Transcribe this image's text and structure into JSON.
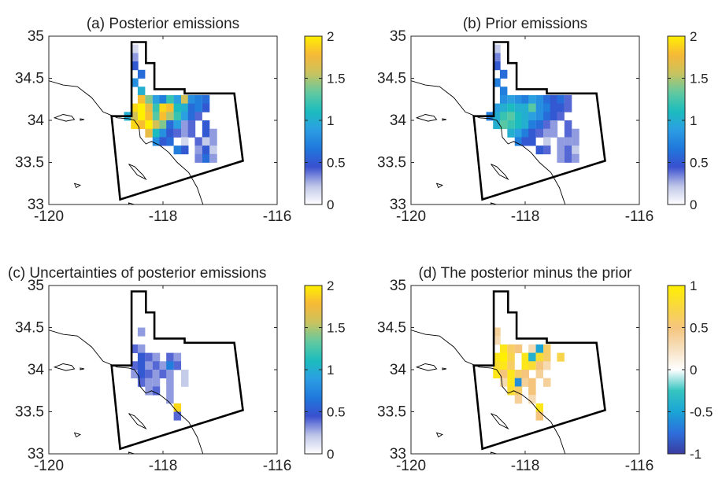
{
  "figure": {
    "colormaps": {
      "emissions": [
        "#ffffff",
        "#bfc6e8",
        "#3a4fcf",
        "#1f78dc",
        "#2c9ee3",
        "#1bbdbd",
        "#63c9a0",
        "#c8c35f",
        "#f7b838",
        "#fff000"
      ],
      "difference": [
        "#3a3ca0",
        "#2d6fdc",
        "#1aa5d6",
        "#36c4c0",
        "#ffffff",
        "#f6e0bf",
        "#f5c57e",
        "#f9d840",
        "#fff000"
      ]
    },
    "boundary_color": "#000000"
  },
  "chart_data": [
    {
      "id": "a",
      "type": "heatmap",
      "title": "(a) Posterior emissions",
      "xlim": [
        -120,
        -116
      ],
      "ylim": [
        33,
        35
      ],
      "xticks": [
        -120,
        -118,
        -116
      ],
      "xticklabels": [
        "-120",
        "-118",
        "-116"
      ],
      "yticks": [
        33,
        33.5,
        34,
        34.5,
        35
      ],
      "yticklabels": [
        "33",
        "33.5",
        "34",
        "34.5",
        "35"
      ],
      "colorbar": {
        "range": [
          0,
          2
        ],
        "ticks": [
          0,
          0.5,
          1,
          1.5,
          2
        ],
        "ticklabels": [
          "0",
          "0.5",
          "1",
          "1.5",
          "2"
        ],
        "cmap": "emissions"
      },
      "grid": "off",
      "cell_size_deg": [
        0.125,
        0.1
      ],
      "cells": [
        [
          -118.5,
          34.85,
          0.15
        ],
        [
          -118.5,
          34.75,
          0.3
        ],
        [
          -118.5,
          34.65,
          0.5
        ],
        [
          -118.38,
          34.55,
          0.6
        ],
        [
          -118.5,
          34.45,
          0.8
        ],
        [
          -118.38,
          34.35,
          1.0
        ],
        [
          -118.38,
          34.25,
          1.8
        ],
        [
          -118.25,
          34.25,
          1.4
        ],
        [
          -118.12,
          34.25,
          0.9
        ],
        [
          -118.0,
          34.25,
          0.7
        ],
        [
          -117.88,
          34.25,
          1.2
        ],
        [
          -117.75,
          34.25,
          0.9
        ],
        [
          -117.62,
          34.25,
          1.6
        ],
        [
          -117.5,
          34.25,
          0.8
        ],
        [
          -117.38,
          34.25,
          0.7
        ],
        [
          -117.25,
          34.25,
          0.6
        ],
        [
          -118.5,
          34.15,
          1.9
        ],
        [
          -118.38,
          34.15,
          2.0
        ],
        [
          -118.25,
          34.15,
          1.7
        ],
        [
          -118.12,
          34.15,
          1.2
        ],
        [
          -118.0,
          34.15,
          1.9
        ],
        [
          -117.88,
          34.15,
          1.8
        ],
        [
          -117.75,
          34.15,
          1.1
        ],
        [
          -117.62,
          34.15,
          1.0
        ],
        [
          -117.5,
          34.15,
          0.6
        ],
        [
          -117.38,
          34.15,
          0.7
        ],
        [
          -117.25,
          34.15,
          0.5
        ],
        [
          -118.62,
          34.05,
          1.0
        ],
        [
          -118.5,
          34.05,
          1.6
        ],
        [
          -118.38,
          34.05,
          2.0
        ],
        [
          -118.25,
          34.05,
          1.8
        ],
        [
          -118.12,
          34.05,
          1.3
        ],
        [
          -118.0,
          34.05,
          1.8
        ],
        [
          -117.88,
          34.05,
          1.5
        ],
        [
          -117.75,
          34.05,
          1.2
        ],
        [
          -117.62,
          34.05,
          0.9
        ],
        [
          -117.5,
          34.05,
          0.6
        ],
        [
          -117.38,
          34.05,
          0.4
        ],
        [
          -118.5,
          33.95,
          1.9
        ],
        [
          -118.38,
          33.95,
          1.8
        ],
        [
          -118.25,
          33.95,
          2.0
        ],
        [
          -118.12,
          33.95,
          1.6
        ],
        [
          -118.0,
          33.95,
          1.4
        ],
        [
          -117.88,
          33.95,
          0.6
        ],
        [
          -117.75,
          33.95,
          0.9
        ],
        [
          -117.62,
          33.95,
          0.3
        ],
        [
          -117.5,
          33.95,
          0.4
        ],
        [
          -117.25,
          33.95,
          0.5
        ],
        [
          -118.25,
          33.85,
          1.7
        ],
        [
          -118.12,
          33.85,
          1.1
        ],
        [
          -118.0,
          33.85,
          0.8
        ],
        [
          -117.88,
          33.85,
          0.5
        ],
        [
          -117.75,
          33.85,
          0.4
        ],
        [
          -117.62,
          33.85,
          0.3
        ],
        [
          -117.5,
          33.85,
          0.4
        ],
        [
          -117.25,
          33.85,
          0.5
        ],
        [
          -117.12,
          33.85,
          0.3
        ],
        [
          -118.12,
          33.75,
          0.8
        ],
        [
          -118.0,
          33.75,
          0.5
        ],
        [
          -117.88,
          33.75,
          0.6
        ],
        [
          -117.62,
          33.75,
          0.15
        ],
        [
          -117.38,
          33.75,
          0.4
        ],
        [
          -117.25,
          33.75,
          0.2
        ],
        [
          -117.12,
          33.75,
          0.3
        ],
        [
          -117.75,
          33.65,
          0.7
        ],
        [
          -117.62,
          33.65,
          0.5
        ],
        [
          -117.38,
          33.65,
          0.3
        ],
        [
          -117.25,
          33.65,
          0.5
        ],
        [
          -117.12,
          33.65,
          0.2
        ],
        [
          -117.38,
          33.55,
          0.35
        ],
        [
          -117.25,
          33.55,
          0.6
        ],
        [
          -117.12,
          33.55,
          0.3
        ]
      ]
    },
    {
      "id": "b",
      "type": "heatmap",
      "title": "(b) Prior emissions",
      "xlim": [
        -120,
        -116
      ],
      "ylim": [
        33,
        35
      ],
      "xticks": [
        -120,
        -118,
        -116
      ],
      "xticklabels": [
        "-120",
        "-118",
        "-116"
      ],
      "yticks": [
        33,
        33.5,
        34,
        34.5,
        35
      ],
      "yticklabels": [
        "33",
        "33.5",
        "34",
        "34.5",
        "35"
      ],
      "colorbar": {
        "range": [
          0,
          2
        ],
        "ticks": [
          0,
          0.5,
          1,
          1.5,
          2
        ],
        "ticklabels": [
          "0",
          "0.5",
          "1",
          "1.5",
          "2"
        ],
        "cmap": "emissions"
      },
      "grid": "off",
      "cell_size_deg": [
        0.125,
        0.1
      ],
      "cells": [
        [
          -118.5,
          34.85,
          0.2
        ],
        [
          -118.5,
          34.75,
          0.35
        ],
        [
          -118.5,
          34.65,
          0.5
        ],
        [
          -118.38,
          34.55,
          0.6
        ],
        [
          -118.5,
          34.45,
          0.7
        ],
        [
          -118.38,
          34.35,
          0.7
        ],
        [
          -118.38,
          34.25,
          0.8
        ],
        [
          -118.25,
          34.25,
          0.9
        ],
        [
          -118.12,
          34.25,
          0.8
        ],
        [
          -118.0,
          34.25,
          0.7
        ],
        [
          -117.88,
          34.25,
          0.9
        ],
        [
          -117.75,
          34.25,
          0.8
        ],
        [
          -117.62,
          34.25,
          0.6
        ],
        [
          -117.5,
          34.25,
          0.5
        ],
        [
          -117.38,
          34.25,
          0.6
        ],
        [
          -117.25,
          34.25,
          0.4
        ],
        [
          -118.5,
          34.15,
          0.9
        ],
        [
          -118.38,
          34.15,
          1.0
        ],
        [
          -118.25,
          34.15,
          1.1
        ],
        [
          -118.12,
          34.15,
          1.0
        ],
        [
          -118.0,
          34.15,
          1.0
        ],
        [
          -117.88,
          34.15,
          1.3
        ],
        [
          -117.75,
          34.15,
          0.8
        ],
        [
          -117.62,
          34.15,
          0.7
        ],
        [
          -117.5,
          34.15,
          0.5
        ],
        [
          -117.38,
          34.15,
          0.5
        ],
        [
          -117.25,
          34.15,
          0.4
        ],
        [
          -118.62,
          34.05,
          0.7
        ],
        [
          -118.5,
          34.05,
          1.0
        ],
        [
          -118.38,
          34.05,
          1.2
        ],
        [
          -118.25,
          34.05,
          1.3
        ],
        [
          -118.12,
          34.05,
          1.1
        ],
        [
          -118.0,
          34.05,
          1.0
        ],
        [
          -117.88,
          34.05,
          0.9
        ],
        [
          -117.75,
          34.05,
          0.8
        ],
        [
          -117.62,
          34.05,
          0.6
        ],
        [
          -117.5,
          34.05,
          0.5
        ],
        [
          -117.38,
          34.05,
          0.4
        ],
        [
          -118.5,
          33.95,
          1.0
        ],
        [
          -118.38,
          33.95,
          1.3
        ],
        [
          -118.25,
          33.95,
          1.2
        ],
        [
          -118.12,
          33.95,
          1.1
        ],
        [
          -118.0,
          33.95,
          1.0
        ],
        [
          -117.88,
          33.95,
          0.7
        ],
        [
          -117.75,
          33.95,
          0.6
        ],
        [
          -117.62,
          33.95,
          0.4
        ],
        [
          -117.5,
          33.95,
          0.3
        ],
        [
          -117.25,
          33.95,
          0.4
        ],
        [
          -118.25,
          33.85,
          1.0
        ],
        [
          -118.12,
          33.85,
          0.9
        ],
        [
          -118.0,
          33.85,
          0.7
        ],
        [
          -117.88,
          33.85,
          0.5
        ],
        [
          -117.75,
          33.85,
          0.4
        ],
        [
          -117.62,
          33.85,
          0.3
        ],
        [
          -117.5,
          33.85,
          0.3
        ],
        [
          -117.25,
          33.85,
          0.4
        ],
        [
          -117.12,
          33.85,
          0.3
        ],
        [
          -118.12,
          33.75,
          0.7
        ],
        [
          -118.0,
          33.75,
          0.5
        ],
        [
          -117.88,
          33.75,
          0.5
        ],
        [
          -117.62,
          33.75,
          0.2
        ],
        [
          -117.38,
          33.75,
          0.3
        ],
        [
          -117.25,
          33.75,
          0.3
        ],
        [
          -117.12,
          33.75,
          0.3
        ],
        [
          -117.75,
          33.65,
          0.5
        ],
        [
          -117.62,
          33.65,
          0.4
        ],
        [
          -117.38,
          33.65,
          0.3
        ],
        [
          -117.25,
          33.65,
          0.4
        ],
        [
          -117.12,
          33.65,
          0.2
        ],
        [
          -117.38,
          33.55,
          0.3
        ],
        [
          -117.25,
          33.55,
          0.4
        ],
        [
          -117.12,
          33.55,
          0.3
        ]
      ]
    },
    {
      "id": "c",
      "type": "heatmap",
      "title": "(c) Uncertainties of posterior emissions",
      "xlim": [
        -120,
        -116
      ],
      "ylim": [
        33,
        35
      ],
      "xticks": [
        -120,
        -118,
        -116
      ],
      "xticklabels": [
        "-120",
        "-118",
        "-116"
      ],
      "yticks": [
        33,
        33.5,
        34,
        34.5,
        35
      ],
      "yticklabels": [
        "33",
        "33.5",
        "34",
        "34.5",
        "35"
      ],
      "colorbar": {
        "range": [
          0,
          2
        ],
        "ticks": [
          0,
          0.5,
          1,
          1.5,
          2
        ],
        "ticklabels": [
          "0",
          "0.5",
          "1",
          "1.5",
          "2"
        ],
        "cmap": "emissions"
      },
      "grid": "off",
      "cell_size_deg": [
        0.125,
        0.1
      ],
      "cells": [
        [
          -118.38,
          34.45,
          0.3
        ],
        [
          -118.5,
          34.25,
          0.4
        ],
        [
          -118.38,
          34.25,
          0.3
        ],
        [
          -118.38,
          34.15,
          0.5
        ],
        [
          -118.25,
          34.15,
          0.4
        ],
        [
          -118.12,
          34.15,
          0.3
        ],
        [
          -117.88,
          34.15,
          0.4
        ],
        [
          -117.75,
          34.15,
          0.3
        ],
        [
          -118.5,
          34.05,
          0.4
        ],
        [
          -118.38,
          34.05,
          0.5
        ],
        [
          -118.25,
          34.05,
          0.3
        ],
        [
          -118.12,
          34.05,
          0.4
        ],
        [
          -118.0,
          34.05,
          0.3
        ],
        [
          -117.88,
          34.05,
          0.7
        ],
        [
          -117.75,
          34.05,
          0.4
        ],
        [
          -118.5,
          33.95,
          0.3
        ],
        [
          -118.38,
          33.95,
          0.5
        ],
        [
          -118.25,
          33.95,
          0.4
        ],
        [
          -118.12,
          33.95,
          0.3
        ],
        [
          -118.0,
          33.95,
          0.4
        ],
        [
          -117.88,
          33.95,
          0.3
        ],
        [
          -117.62,
          33.95,
          0.2
        ],
        [
          -118.38,
          33.85,
          0.4
        ],
        [
          -118.25,
          33.85,
          0.3
        ],
        [
          -118.12,
          33.85,
          0.3
        ],
        [
          -117.88,
          33.85,
          0.3
        ],
        [
          -117.62,
          33.85,
          0.2
        ],
        [
          -118.25,
          33.75,
          0.3
        ],
        [
          -118.12,
          33.75,
          0.4
        ],
        [
          -117.88,
          33.75,
          0.3
        ],
        [
          -117.88,
          33.65,
          0.3
        ],
        [
          -117.75,
          33.55,
          1.9
        ],
        [
          -117.75,
          33.45,
          0.4
        ]
      ]
    },
    {
      "id": "d",
      "type": "heatmap",
      "title": "(d) The posterior minus the prior",
      "xlim": [
        -120,
        -116
      ],
      "ylim": [
        33,
        35
      ],
      "xticks": [
        -120,
        -118,
        -116
      ],
      "xticklabels": [
        "-120",
        "-118",
        "-116"
      ],
      "yticks": [
        33,
        33.5,
        34,
        34.5,
        35
      ],
      "yticklabels": [
        "33",
        "33.5",
        "34",
        "34.5",
        "35"
      ],
      "colorbar": {
        "range": [
          -1,
          1
        ],
        "ticks": [
          -1,
          -0.5,
          0,
          0.5,
          1
        ],
        "ticklabels": [
          "-1",
          "-0.5",
          "0",
          "0.5",
          "1"
        ],
        "cmap": "difference"
      },
      "grid": "off",
      "cell_size_deg": [
        0.125,
        0.1
      ],
      "cells": [
        [
          -118.5,
          34.45,
          0.4
        ],
        [
          -118.5,
          34.35,
          0.3
        ],
        [
          -118.38,
          34.25,
          0.9
        ],
        [
          -118.25,
          34.25,
          0.6
        ],
        [
          -118.12,
          34.25,
          0.5
        ],
        [
          -117.88,
          34.25,
          0.3
        ],
        [
          -117.75,
          34.25,
          -0.5
        ],
        [
          -117.62,
          34.25,
          0.6
        ],
        [
          -118.5,
          34.15,
          0.9
        ],
        [
          -118.38,
          34.15,
          1.0
        ],
        [
          -118.25,
          34.15,
          0.7
        ],
        [
          -118.0,
          34.15,
          0.9
        ],
        [
          -117.88,
          34.15,
          -0.4
        ],
        [
          -117.75,
          34.15,
          0.8
        ],
        [
          -117.62,
          34.15,
          0.6
        ],
        [
          -117.38,
          34.15,
          0.7
        ],
        [
          -118.5,
          34.05,
          0.8
        ],
        [
          -118.38,
          34.05,
          0.9
        ],
        [
          -118.25,
          34.05,
          0.6
        ],
        [
          -118.0,
          34.05,
          0.9
        ],
        [
          -117.88,
          34.05,
          0.8
        ],
        [
          -117.75,
          34.05,
          0.5
        ],
        [
          -117.62,
          34.05,
          0.3
        ],
        [
          -118.5,
          33.95,
          0.9
        ],
        [
          -118.38,
          33.95,
          0.5
        ],
        [
          -118.25,
          33.95,
          0.9
        ],
        [
          -118.12,
          33.95,
          0.6
        ],
        [
          -118.0,
          33.95,
          0.5
        ],
        [
          -117.75,
          33.95,
          0.4
        ],
        [
          -118.38,
          33.85,
          0.3
        ],
        [
          -118.25,
          33.85,
          0.9
        ],
        [
          -118.12,
          33.85,
          -0.6
        ],
        [
          -118.0,
          33.85,
          0.4
        ],
        [
          -117.88,
          33.85,
          0.5
        ],
        [
          -117.62,
          33.85,
          0.4
        ],
        [
          -118.25,
          33.75,
          0.8
        ],
        [
          -118.12,
          33.75,
          0.6
        ],
        [
          -117.88,
          33.75,
          0.5
        ],
        [
          -118.12,
          33.65,
          0.4
        ],
        [
          -117.88,
          33.65,
          0.3
        ],
        [
          -117.75,
          33.55,
          0.9
        ],
        [
          -117.75,
          33.45,
          0.5
        ]
      ]
    }
  ]
}
